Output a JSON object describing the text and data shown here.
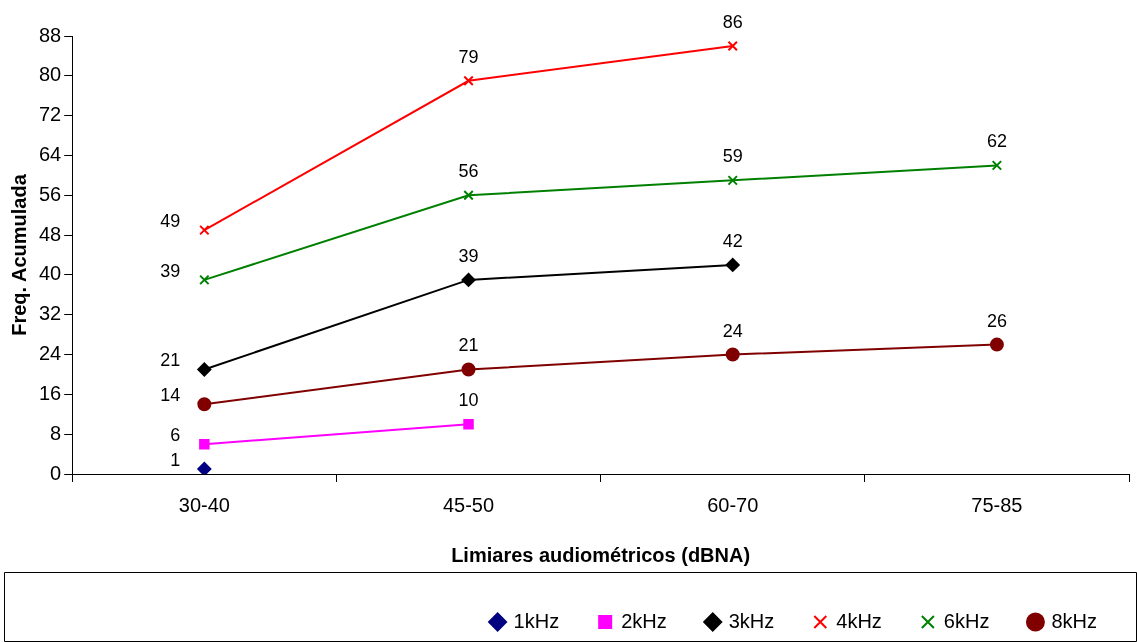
{
  "chart_data": {
    "type": "line",
    "xlabel": "Limiares audiométricos (dBNA)",
    "ylabel": "Freq. Acumulada",
    "categories": [
      "30-40",
      "45-50",
      "60-70",
      "75-85"
    ],
    "ylim": [
      0,
      88
    ],
    "yticks": [
      0,
      8,
      16,
      24,
      32,
      40,
      48,
      56,
      64,
      72,
      80,
      88
    ],
    "grid": false,
    "legend": "bottom",
    "data_labels": true,
    "series": [
      {
        "name": "1kHz",
        "type": "scatter",
        "color": "#000080",
        "marker": "diamond",
        "values": [
          1,
          null,
          null,
          null
        ]
      },
      {
        "name": "2kHz",
        "color": "#ff00ff",
        "marker": "square",
        "values": [
          6,
          10,
          null,
          null
        ]
      },
      {
        "name": "3kHz",
        "color": "#000000",
        "marker": "diamond",
        "values": [
          21,
          39,
          42,
          null
        ]
      },
      {
        "name": "4kHz",
        "color": "#ff0000",
        "marker": "cross",
        "values": [
          49,
          79,
          86,
          null
        ]
      },
      {
        "name": "6kHz",
        "color": "#008000",
        "marker": "cross",
        "values": [
          39,
          56,
          59,
          62
        ]
      },
      {
        "name": "8kHz",
        "color": "#800000",
        "marker": "circle",
        "values": [
          14,
          21,
          24,
          26
        ]
      }
    ]
  }
}
